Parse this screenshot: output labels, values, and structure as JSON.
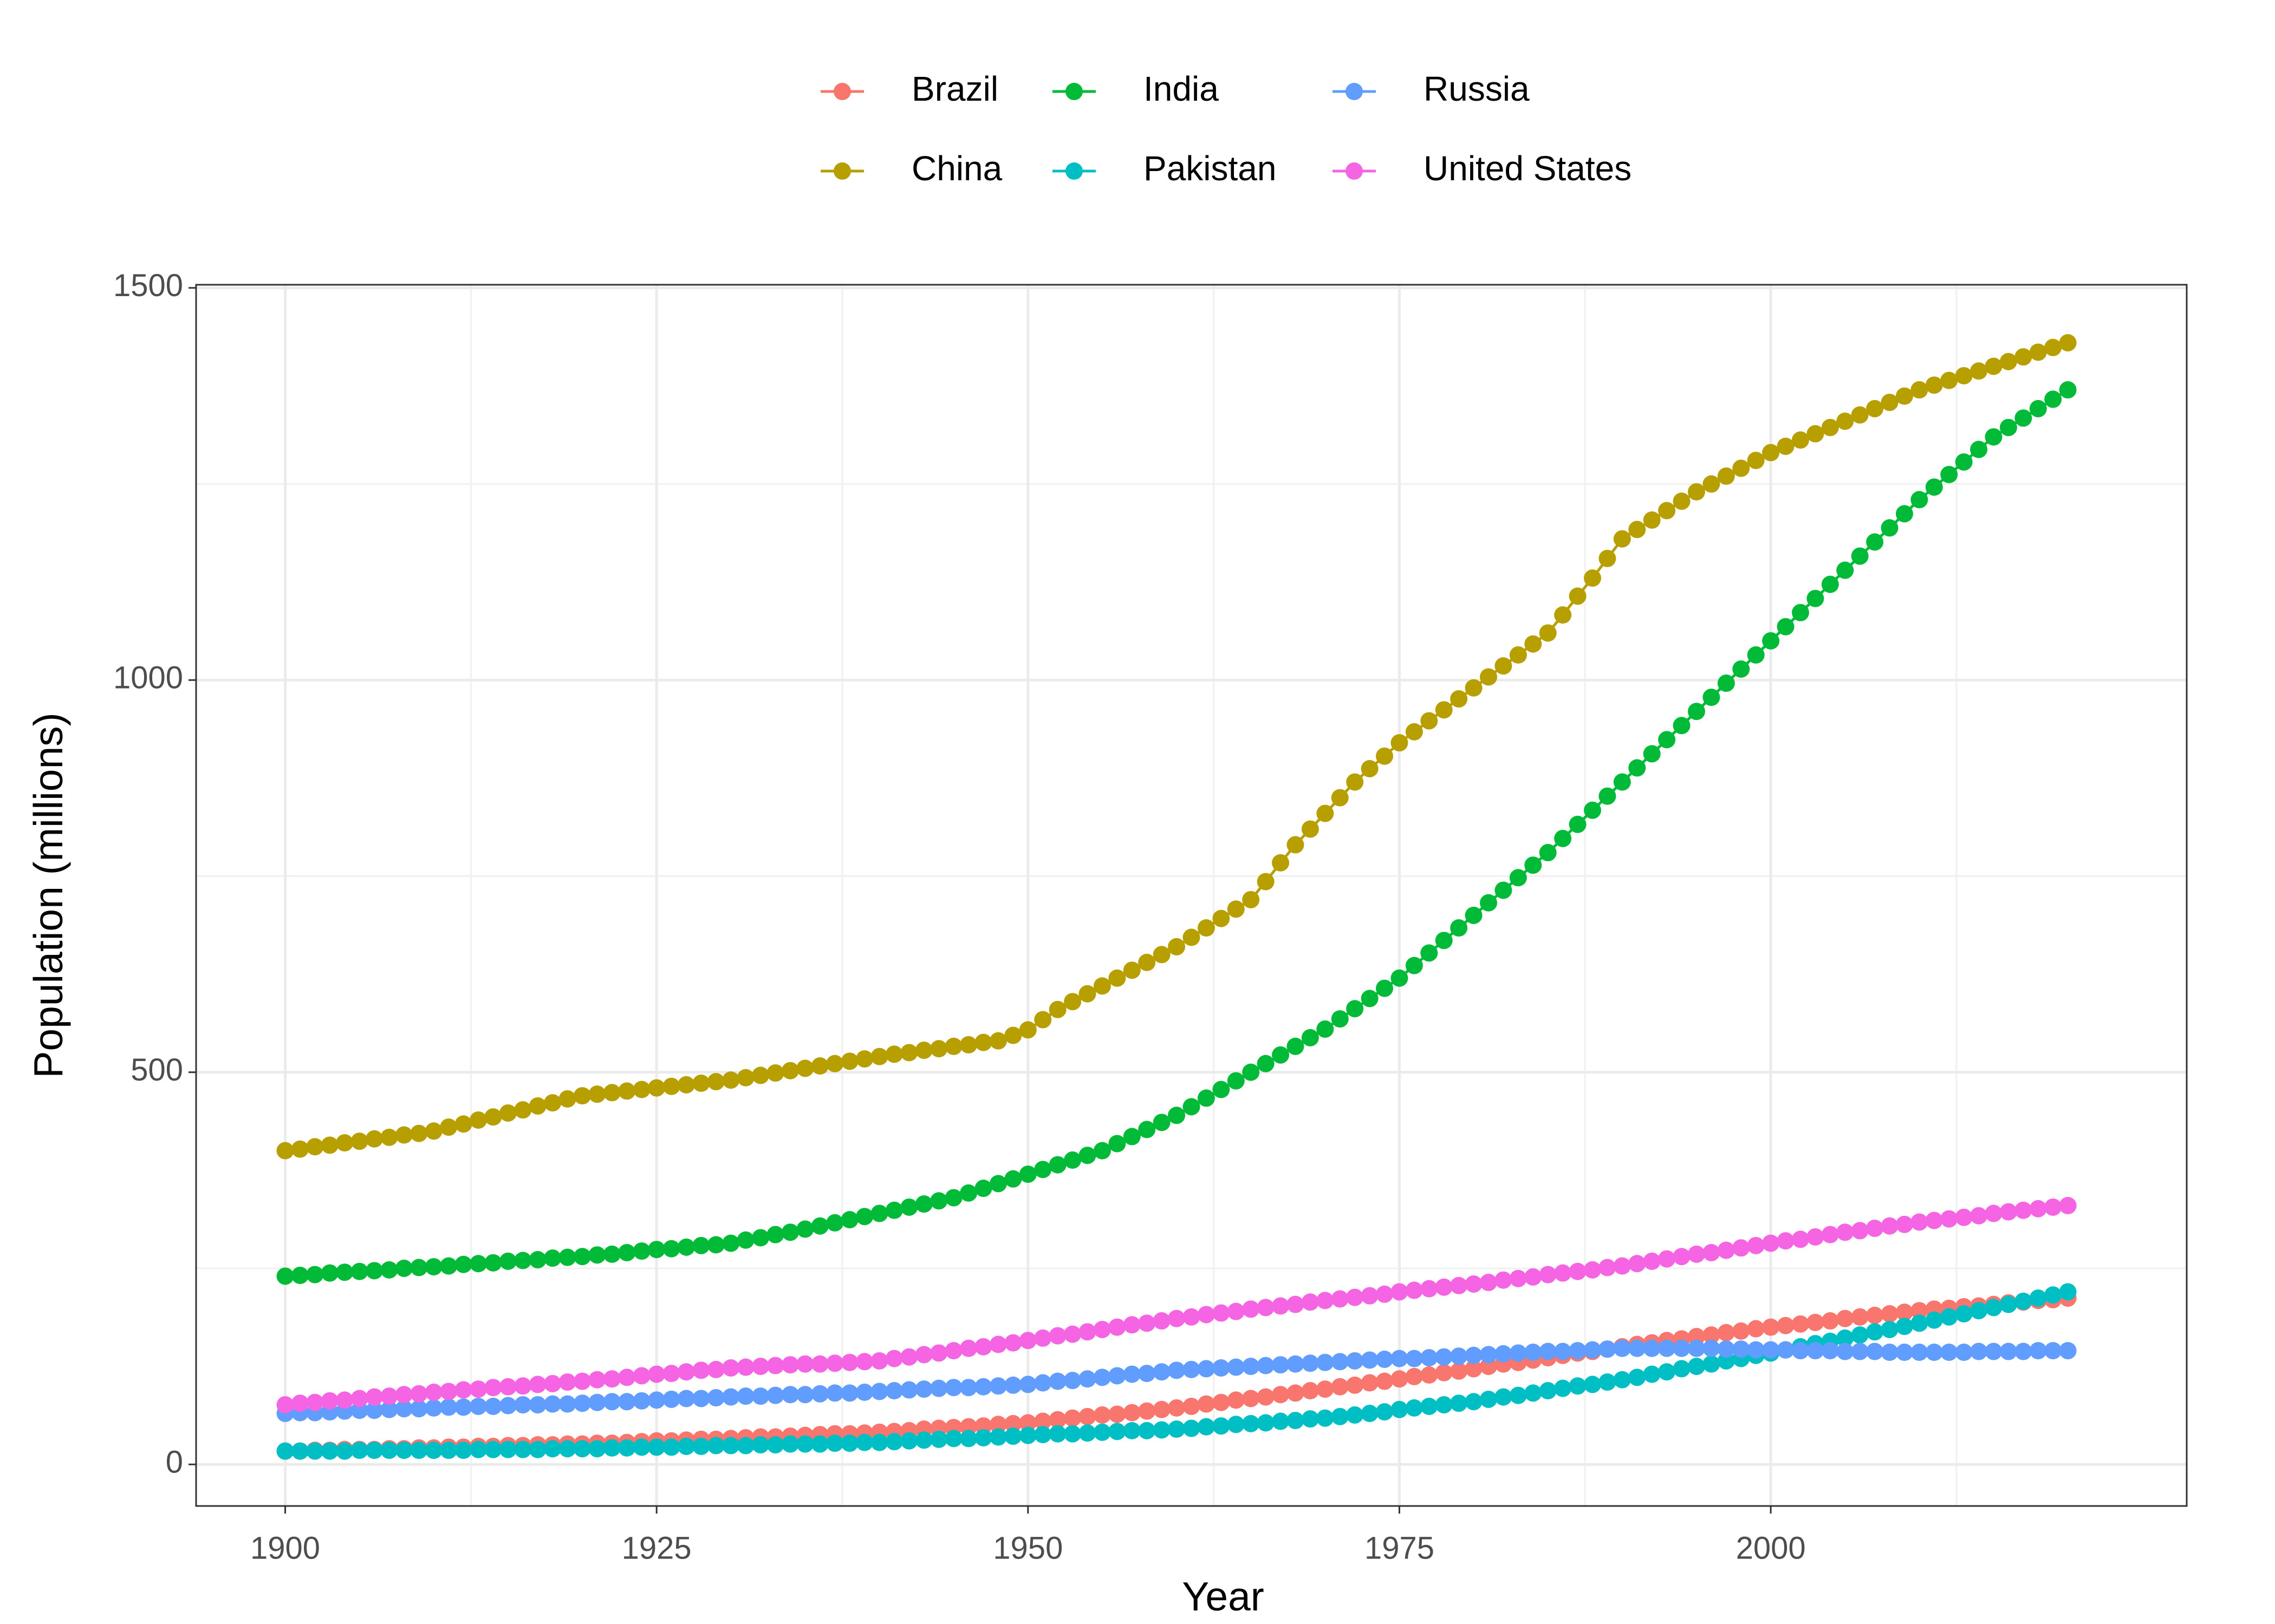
{
  "chart_data": {
    "type": "line",
    "xlabel": "Year",
    "ylabel": "Population (millions)",
    "x": [
      1900,
      1901,
      1902,
      1903,
      1904,
      1905,
      1906,
      1907,
      1908,
      1909,
      1910,
      1911,
      1912,
      1913,
      1914,
      1915,
      1916,
      1917,
      1918,
      1919,
      1920,
      1921,
      1922,
      1923,
      1924,
      1925,
      1926,
      1927,
      1928,
      1929,
      1930,
      1931,
      1932,
      1933,
      1934,
      1935,
      1936,
      1937,
      1938,
      1939,
      1940,
      1941,
      1942,
      1943,
      1944,
      1945,
      1946,
      1947,
      1948,
      1949,
      1950,
      1951,
      1952,
      1953,
      1954,
      1955,
      1956,
      1957,
      1958,
      1959,
      1960,
      1961,
      1962,
      1963,
      1964,
      1965,
      1966,
      1967,
      1968,
      1969,
      1970,
      1971,
      1972,
      1973,
      1974,
      1975,
      1976,
      1977,
      1978,
      1979,
      1980,
      1981,
      1982,
      1983,
      1984,
      1985,
      1986,
      1987,
      1988,
      1989,
      1990,
      1991,
      1992,
      1993,
      1994,
      1995,
      1996,
      1997,
      1998,
      1999,
      2000,
      2001,
      2002,
      2003,
      2004,
      2005,
      2006,
      2007,
      2008,
      2009,
      2010,
      2011,
      2012,
      2013,
      2014,
      2015,
      2016,
      2017,
      2018,
      2019,
      2020
    ],
    "series": [
      {
        "name": "Brazil",
        "color": "#F8766D",
        "values": [
          17,
          17,
          18,
          18,
          19,
          19,
          19,
          20,
          20,
          21,
          21,
          22,
          22,
          23,
          23,
          24,
          24,
          25,
          25,
          26,
          26,
          27,
          27,
          28,
          29,
          30,
          30,
          31,
          32,
          32,
          33,
          34,
          35,
          35,
          36,
          37,
          38,
          39,
          39,
          40,
          41,
          42,
          43,
          45,
          46,
          47,
          48,
          49,
          51,
          52,
          53,
          55,
          57,
          59,
          61,
          63,
          64,
          66,
          68,
          70,
          72,
          74,
          77,
          79,
          82,
          84,
          86,
          89,
          91,
          94,
          96,
          99,
          101,
          104,
          106,
          109,
          112,
          114,
          117,
          119,
          122,
          125,
          128,
          130,
          133,
          136,
          139,
          142,
          144,
          147,
          150,
          153,
          155,
          158,
          160,
          163,
          165,
          168,
          170,
          173,
          175,
          177,
          179,
          181,
          183,
          186,
          188,
          190,
          192,
          194,
          196,
          198,
          199,
          201,
          202,
          204,
          206,
          207,
          209,
          210,
          212
        ]
      },
      {
        "name": "China",
        "color": "#B79F00",
        "values": [
          400,
          402,
          405,
          407,
          410,
          412,
          415,
          417,
          420,
          422,
          425,
          430,
          434,
          439,
          443,
          448,
          452,
          457,
          461,
          466,
          470,
          472,
          474,
          476,
          478,
          480,
          482,
          484,
          486,
          488,
          490,
          493,
          496,
          499,
          502,
          505,
          508,
          511,
          514,
          517,
          520,
          523,
          525,
          528,
          530,
          533,
          535,
          538,
          540,
          547,
          554,
          567,
          580,
          590,
          600,
          610,
          620,
          630,
          640,
          650,
          660,
          672,
          684,
          696,
          708,
          720,
          743,
          767,
          790,
          810,
          830,
          850,
          870,
          887,
          903,
          920,
          934,
          948,
          962,
          976,
          990,
          1004,
          1018,
          1032,
          1046,
          1060,
          1083,
          1107,
          1130,
          1155,
          1180,
          1192,
          1204,
          1216,
          1228,
          1240,
          1250,
          1260,
          1270,
          1280,
          1290,
          1298,
          1306,
          1314,
          1322,
          1330,
          1338,
          1346,
          1354,
          1362,
          1370,
          1376,
          1382,
          1388,
          1394,
          1400,
          1406,
          1412,
          1418,
          1424,
          1430
        ]
      },
      {
        "name": "India",
        "color": "#00BA38",
        "values": [
          240,
          241,
          242,
          244,
          245,
          246,
          247,
          248,
          250,
          251,
          252,
          253,
          255,
          256,
          257,
          259,
          260,
          261,
          263,
          264,
          265,
          267,
          268,
          270,
          272,
          274,
          275,
          277,
          279,
          280,
          282,
          286,
          289,
          293,
          296,
          300,
          304,
          308,
          312,
          316,
          320,
          324,
          328,
          332,
          336,
          340,
          346,
          352,
          358,
          364,
          370,
          376,
          382,
          388,
          394,
          400,
          409,
          418,
          427,
          436,
          445,
          456,
          467,
          478,
          489,
          500,
          511,
          522,
          533,
          544,
          555,
          568,
          581,
          594,
          607,
          620,
          636,
          652,
          668,
          684,
          700,
          716,
          732,
          748,
          764,
          780,
          798,
          816,
          834,
          852,
          870,
          888,
          906,
          924,
          942,
          960,
          978,
          996,
          1014,
          1032,
          1050,
          1068,
          1086,
          1104,
          1122,
          1140,
          1158,
          1176,
          1194,
          1212,
          1230,
          1246,
          1262,
          1278,
          1294,
          1310,
          1322,
          1334,
          1346,
          1358,
          1370
        ]
      },
      {
        "name": "Pakistan",
        "color": "#00BFC4",
        "values": [
          17,
          17,
          17,
          17,
          17,
          18,
          18,
          18,
          18,
          18,
          18,
          18,
          18,
          19,
          19,
          19,
          19,
          19,
          20,
          20,
          20,
          20,
          21,
          21,
          22,
          22,
          22,
          23,
          23,
          24,
          24,
          24,
          25,
          25,
          26,
          26,
          26,
          27,
          27,
          28,
          28,
          29,
          30,
          31,
          32,
          33,
          33,
          34,
          35,
          36,
          37,
          38,
          39,
          39,
          40,
          41,
          42,
          43,
          43,
          44,
          45,
          46,
          48,
          49,
          51,
          52,
          53,
          55,
          56,
          58,
          59,
          61,
          63,
          65,
          67,
          70,
          72,
          74,
          76,
          78,
          80,
          83,
          86,
          88,
          91,
          94,
          97,
          100,
          102,
          105,
          108,
          111,
          115,
          118,
          122,
          125,
          128,
          132,
          135,
          139,
          142,
          146,
          150,
          154,
          157,
          161,
          165,
          169,
          172,
          176,
          180,
          184,
          188,
          192,
          196,
          200,
          204,
          208,
          212,
          216,
          220
        ]
      },
      {
        "name": "Russia",
        "color": "#619CFF",
        "values": [
          65,
          66,
          66,
          67,
          68,
          69,
          69,
          70,
          71,
          71,
          72,
          73,
          73,
          74,
          74,
          75,
          76,
          76,
          77,
          77,
          78,
          79,
          80,
          80,
          81,
          82,
          83,
          84,
          84,
          85,
          86,
          87,
          87,
          88,
          89,
          89,
          90,
          91,
          91,
          92,
          93,
          94,
          95,
          96,
          97,
          98,
          98,
          99,
          100,
          101,
          102,
          104,
          106,
          107,
          109,
          111,
          113,
          115,
          116,
          118,
          120,
          121,
          122,
          123,
          124,
          125,
          126,
          127,
          128,
          129,
          130,
          131,
          132,
          133,
          134,
          135,
          135,
          136,
          137,
          138,
          139,
          140,
          141,
          142,
          143,
          144,
          144,
          145,
          146,
          147,
          148,
          148,
          148,
          148,
          148,
          148,
          148,
          147,
          147,
          146,
          146,
          146,
          145,
          145,
          145,
          144,
          144,
          144,
          143,
          143,
          143,
          143,
          143,
          143,
          144,
          144,
          144,
          144,
          145,
          145,
          145
        ]
      },
      {
        "name": "United States",
        "color": "#F564E3",
        "values": [
          76,
          78,
          79,
          81,
          82,
          84,
          86,
          87,
          89,
          90,
          92,
          93,
          95,
          96,
          98,
          99,
          100,
          102,
          103,
          105,
          106,
          108,
          109,
          111,
          113,
          115,
          116,
          118,
          120,
          121,
          123,
          124,
          125,
          126,
          127,
          128,
          128,
          129,
          130,
          131,
          132,
          135,
          137,
          140,
          142,
          145,
          148,
          150,
          153,
          155,
          158,
          161,
          164,
          166,
          169,
          172,
          175,
          178,
          180,
          183,
          186,
          188,
          191,
          193,
          195,
          198,
          200,
          202,
          204,
          207,
          209,
          211,
          213,
          215,
          217,
          220,
          222,
          224,
          226,
          228,
          230,
          232,
          235,
          237,
          239,
          242,
          244,
          246,
          248,
          251,
          253,
          256,
          259,
          262,
          265,
          268,
          270,
          273,
          276,
          279,
          282,
          285,
          287,
          290,
          293,
          296,
          298,
          301,
          304,
          306,
          309,
          311,
          313,
          315,
          317,
          320,
          322,
          324,
          326,
          328,
          330
        ]
      }
    ],
    "xlim": [
      1894,
      2028
    ],
    "ylim": [
      -53,
      1504
    ],
    "xticks": [
      1900,
      1925,
      1950,
      1975,
      2000
    ],
    "yticks": [
      0,
      500,
      1000,
      1500
    ],
    "grid": true,
    "legend": "top"
  }
}
